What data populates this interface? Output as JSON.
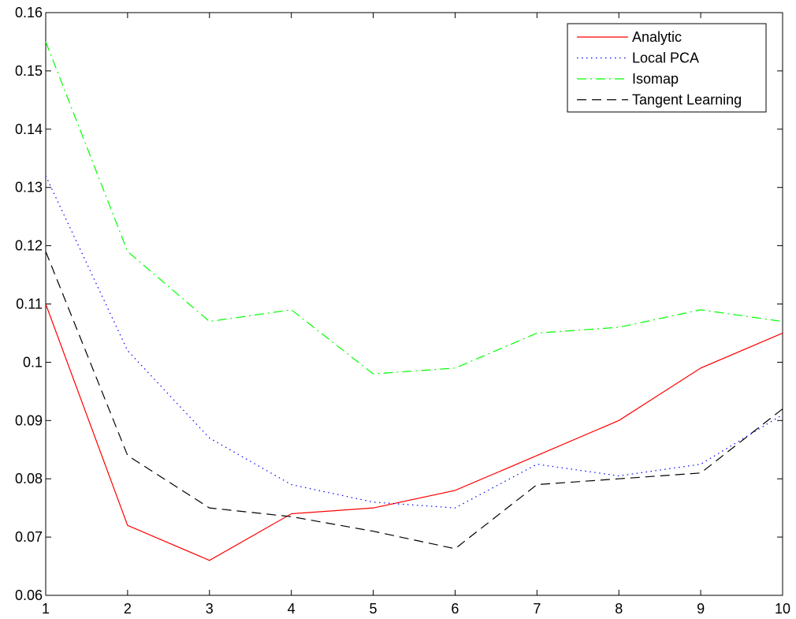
{
  "chart_data": {
    "type": "line",
    "title": "",
    "xlabel": "",
    "ylabel": "",
    "xlim": [
      1,
      10
    ],
    "ylim": [
      0.06,
      0.16
    ],
    "grid": false,
    "legend_position": "top-right",
    "x": [
      1,
      2,
      3,
      4,
      5,
      6,
      7,
      8,
      9,
      10
    ],
    "x_ticks": [
      "1",
      "2",
      "3",
      "4",
      "5",
      "6",
      "7",
      "8",
      "9",
      "10"
    ],
    "y_ticks": [
      0.06,
      0.07,
      0.08,
      0.09,
      0.1,
      0.11,
      0.12,
      0.13,
      0.14,
      0.15,
      0.16
    ],
    "y_tick_labels": [
      "0.06",
      "0.07",
      "0.08",
      "0.09",
      "0.1",
      "0.11",
      "0.12",
      "0.13",
      "0.14",
      "0.15",
      "0.16"
    ],
    "series": [
      {
        "name": "Analytic",
        "color": "#ff0000",
        "style": "solid",
        "values": [
          0.11,
          0.072,
          0.066,
          0.074,
          0.075,
          0.078,
          0.084,
          0.09,
          0.099,
          0.105
        ]
      },
      {
        "name": "Local PCA",
        "color": "#0000ff",
        "style": "dotted",
        "values": [
          0.132,
          0.102,
          0.087,
          0.079,
          0.076,
          0.075,
          0.0825,
          0.0805,
          0.0825,
          0.091
        ]
      },
      {
        "name": "Isomap",
        "color": "#00ff00",
        "style": "dashdot",
        "values": [
          0.155,
          0.119,
          0.107,
          0.109,
          0.098,
          0.099,
          0.105,
          0.106,
          0.109,
          0.107
        ]
      },
      {
        "name": "Tangent Learning",
        "color": "#000000",
        "style": "dashed",
        "values": [
          0.119,
          0.084,
          0.075,
          0.0735,
          0.071,
          0.068,
          0.079,
          0.08,
          0.081,
          0.092
        ]
      }
    ]
  }
}
